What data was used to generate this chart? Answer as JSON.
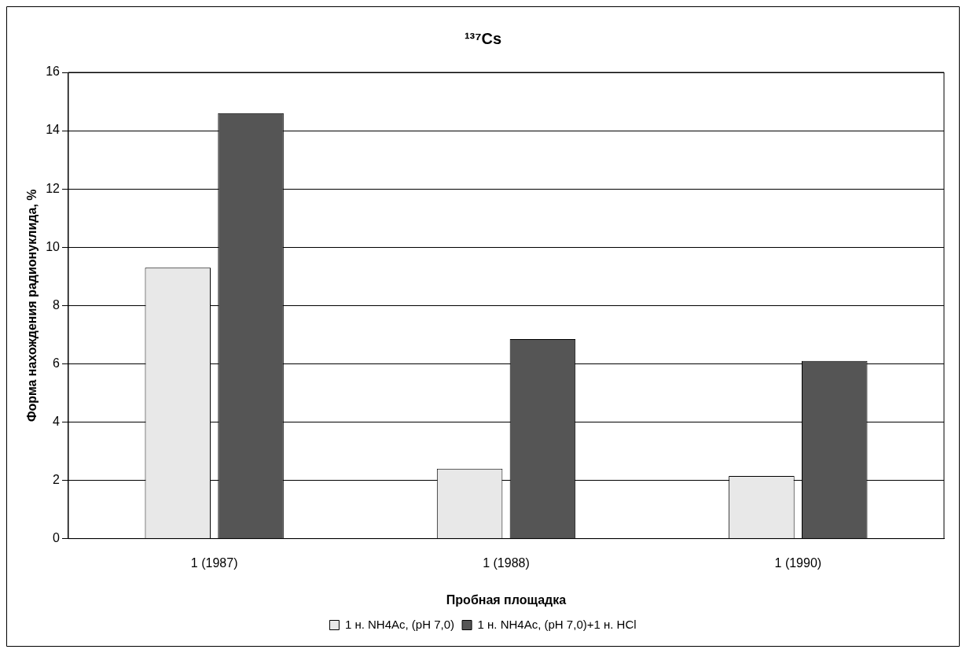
{
  "chart_data": {
    "type": "bar",
    "title": "¹³⁷Cs",
    "xlabel": "Пробная площадка",
    "ylabel": "Форма нахождения радионуклида, %",
    "categories": [
      "1 (1987)",
      "1 (1988)",
      "1 (1990)"
    ],
    "series": [
      {
        "name": "1 н. NH4Ac, (pH 7,0)",
        "color": "#e8e8e8",
        "values": [
          9.3,
          2.4,
          2.15
        ]
      },
      {
        "name": "1 н. NH4Ac, (pH 7,0)+1 н. HCl",
        "color": "#555555",
        "values": [
          14.6,
          6.85,
          6.1
        ]
      }
    ],
    "ylim": [
      0,
      16
    ],
    "yticks": [
      0,
      2,
      4,
      6,
      8,
      10,
      12,
      14,
      16
    ],
    "grid": "y",
    "legend": "bottom"
  }
}
